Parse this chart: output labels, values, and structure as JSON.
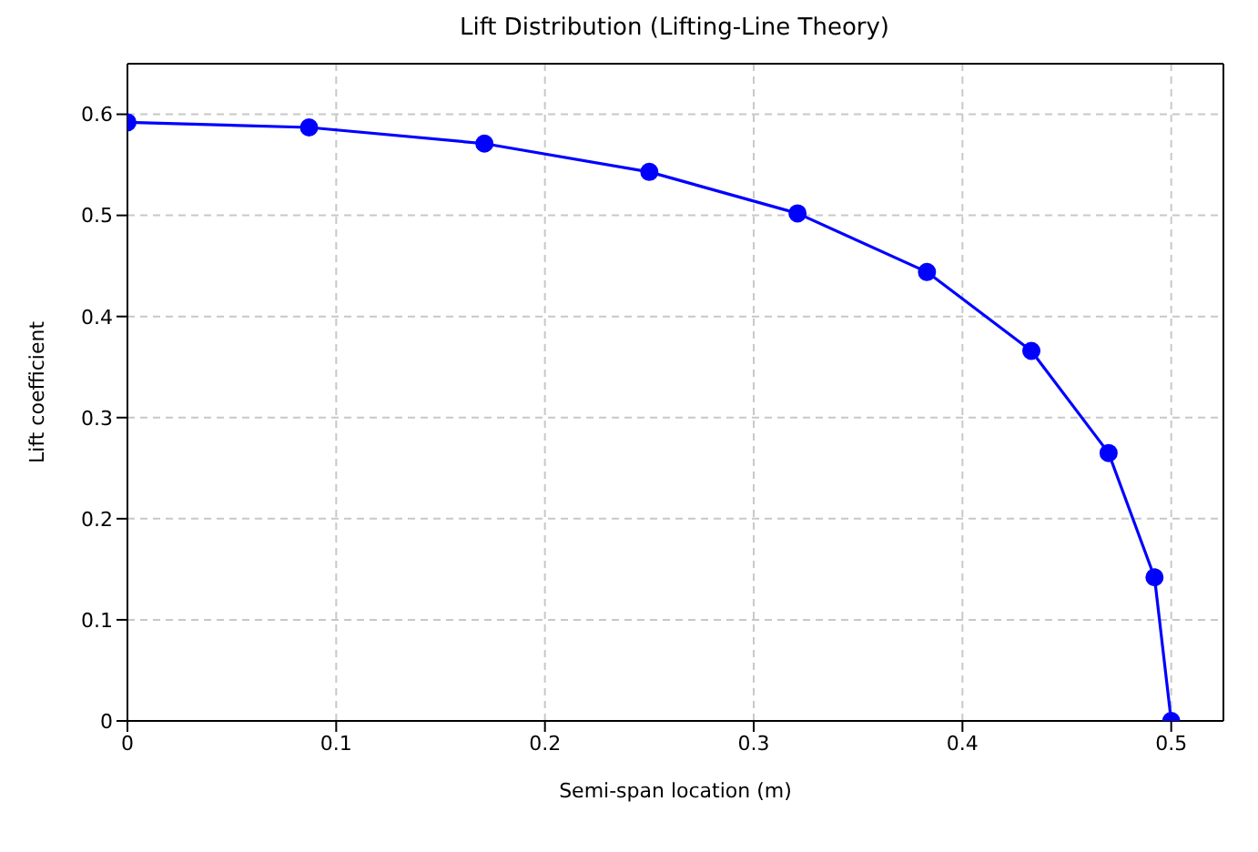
{
  "chart_data": {
    "type": "line",
    "title": "Lift Distribution (Lifting-Line Theory)",
    "xlabel": "Semi-span location (m)",
    "ylabel": "Lift coefficient",
    "x": [
      0,
      0.087,
      0.171,
      0.25,
      0.321,
      0.383,
      0.433,
      0.47,
      0.492,
      0.5
    ],
    "series": [
      {
        "color": "#0000ff",
        "values": [
          0.592,
          0.587,
          0.571,
          0.543,
          0.502,
          0.444,
          0.366,
          0.265,
          0.142,
          0.0
        ]
      }
    ],
    "xlim": [
      0,
      0.525
    ],
    "ylim": [
      0,
      0.65
    ],
    "xticks": [
      0,
      0.1,
      0.2,
      0.3,
      0.4,
      0.5
    ],
    "yticks": [
      0,
      0.1,
      0.2,
      0.3,
      0.4,
      0.5,
      0.6
    ],
    "grid": true,
    "marker": "circle",
    "line_style": "solid"
  }
}
